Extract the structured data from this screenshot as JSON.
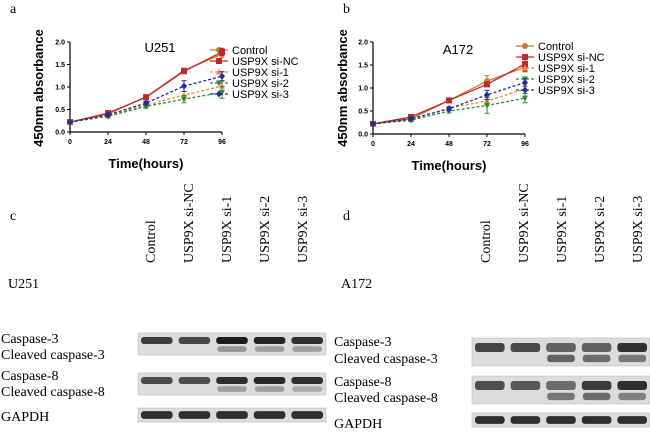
{
  "panels": {
    "a": "a",
    "b": "b",
    "c": "c",
    "d": "d"
  },
  "colors": {
    "Control": "#c8782a",
    "USP9X si-NC": "#c0272d",
    "USP9X si-1": "#f08b3a",
    "USP9X si-2": "#2e8b2e",
    "USP9X si-3": "#1f2f9a"
  },
  "chart_data": [
    {
      "type": "line",
      "title": "U251",
      "xlabel": "Time(hours)",
      "ylabel": "450nm absorbance",
      "x": [
        0,
        24,
        48,
        72,
        96
      ],
      "xlim": [
        0,
        96
      ],
      "ylim": [
        0,
        2.0
      ],
      "xticks": [
        "0",
        "24",
        "48",
        "72",
        "96"
      ],
      "yticks": [
        "0.0",
        "0.5",
        "1.0",
        "1.5",
        "2.0"
      ],
      "legend_position": "top-right",
      "series": [
        {
          "name": "Control",
          "values": [
            0.22,
            0.4,
            0.78,
            1.37,
            1.73
          ],
          "err": [
            0.02,
            0.03,
            0.05,
            0.05,
            0.08
          ]
        },
        {
          "name": "USP9X si-NC",
          "values": [
            0.22,
            0.42,
            0.77,
            1.35,
            1.78
          ],
          "err": [
            0.02,
            0.03,
            0.05,
            0.05,
            0.08
          ]
        },
        {
          "name": "USP9X si-1",
          "values": [
            0.22,
            0.36,
            0.6,
            0.82,
            1.02
          ],
          "err": [
            0.02,
            0.03,
            0.04,
            0.08,
            0.1
          ]
        },
        {
          "name": "USP9X si-2",
          "values": [
            0.22,
            0.35,
            0.57,
            0.73,
            0.88
          ],
          "err": [
            0.02,
            0.03,
            0.04,
            0.08,
            0.13
          ]
        },
        {
          "name": "USP9X si-3",
          "values": [
            0.22,
            0.38,
            0.64,
            1.02,
            1.24
          ],
          "err": [
            0.02,
            0.03,
            0.04,
            0.12,
            0.1
          ]
        }
      ]
    },
    {
      "type": "line",
      "title": "A172",
      "xlabel": "Time(hours)",
      "ylabel": "450nm absorbance",
      "x": [
        0,
        24,
        48,
        72,
        96
      ],
      "xlim": [
        0,
        96
      ],
      "ylim": [
        0,
        2.0
      ],
      "xticks": [
        "0",
        "24",
        "48",
        "72",
        "96"
      ],
      "yticks": [
        "0.0",
        "0.5",
        "1.0",
        "1.5",
        "2.0"
      ],
      "legend_position": "top-right",
      "series": [
        {
          "name": "Control",
          "values": [
            0.22,
            0.33,
            0.73,
            1.15,
            1.45
          ],
          "err": [
            0.02,
            0.03,
            0.04,
            0.12,
            0.1
          ]
        },
        {
          "name": "USP9X si-NC",
          "values": [
            0.22,
            0.37,
            0.73,
            1.08,
            1.52
          ],
          "err": [
            0.02,
            0.03,
            0.04,
            0.05,
            0.15
          ]
        },
        {
          "name": "USP9X si-1",
          "values": [
            0.22,
            0.32,
            0.56,
            0.72,
            0.98
          ],
          "err": [
            0.02,
            0.03,
            0.04,
            0.08,
            0.1
          ]
        },
        {
          "name": "USP9X si-2",
          "values": [
            0.22,
            0.3,
            0.5,
            0.62,
            0.78
          ],
          "err": [
            0.02,
            0.03,
            0.04,
            0.17,
            0.1
          ]
        },
        {
          "name": "USP9X si-3",
          "values": [
            0.22,
            0.33,
            0.55,
            0.85,
            1.12
          ],
          "err": [
            0.02,
            0.03,
            0.04,
            0.1,
            0.08
          ]
        }
      ]
    }
  ],
  "blots": [
    {
      "cell_line": "U251",
      "lanes": [
        "Control",
        "USP9X si-NC",
        "USP9X si-1",
        "USP9X si-2",
        "USP9X si-3"
      ],
      "rows": [
        {
          "labels": [
            "Caspase-3",
            "Cleaved caspase-3"
          ],
          "intensity": [
            0.78,
            0.74,
            0.95,
            0.9,
            0.85
          ],
          "cleaved": [
            0,
            0,
            0.35,
            0.3,
            0.3
          ]
        },
        {
          "labels": [
            "Caspase-8",
            "Cleaved caspase-8"
          ],
          "intensity": [
            0.72,
            0.7,
            0.85,
            0.88,
            0.85
          ],
          "cleaved": [
            0,
            0,
            0.3,
            0.3,
            0.25
          ]
        },
        {
          "labels": [
            "GAPDH"
          ],
          "intensity": [
            0.85,
            0.85,
            0.85,
            0.85,
            0.85
          ],
          "cleaved": [
            0,
            0,
            0,
            0,
            0
          ]
        }
      ]
    },
    {
      "cell_line": "A172",
      "lanes": [
        "Control",
        "USP9X si-NC",
        "USP9X si-1",
        "USP9X si-2",
        "USP9X si-3"
      ],
      "rows": [
        {
          "labels": [
            "Caspase-3",
            "Cleaved caspase-3"
          ],
          "intensity": [
            0.75,
            0.72,
            0.6,
            0.6,
            0.85
          ],
          "cleaved": [
            0,
            0,
            0.6,
            0.55,
            0.5
          ]
        },
        {
          "labels": [
            "Caspase-8",
            "Cleaved caspase-8"
          ],
          "intensity": [
            0.7,
            0.65,
            0.55,
            0.8,
            0.85
          ],
          "cleaved": [
            0,
            0,
            0.5,
            0.55,
            0.45
          ]
        },
        {
          "labels": [
            "GAPDH"
          ],
          "intensity": [
            0.85,
            0.85,
            0.85,
            0.85,
            0.85
          ],
          "cleaved": [
            0,
            0,
            0,
            0,
            0
          ]
        }
      ]
    }
  ]
}
